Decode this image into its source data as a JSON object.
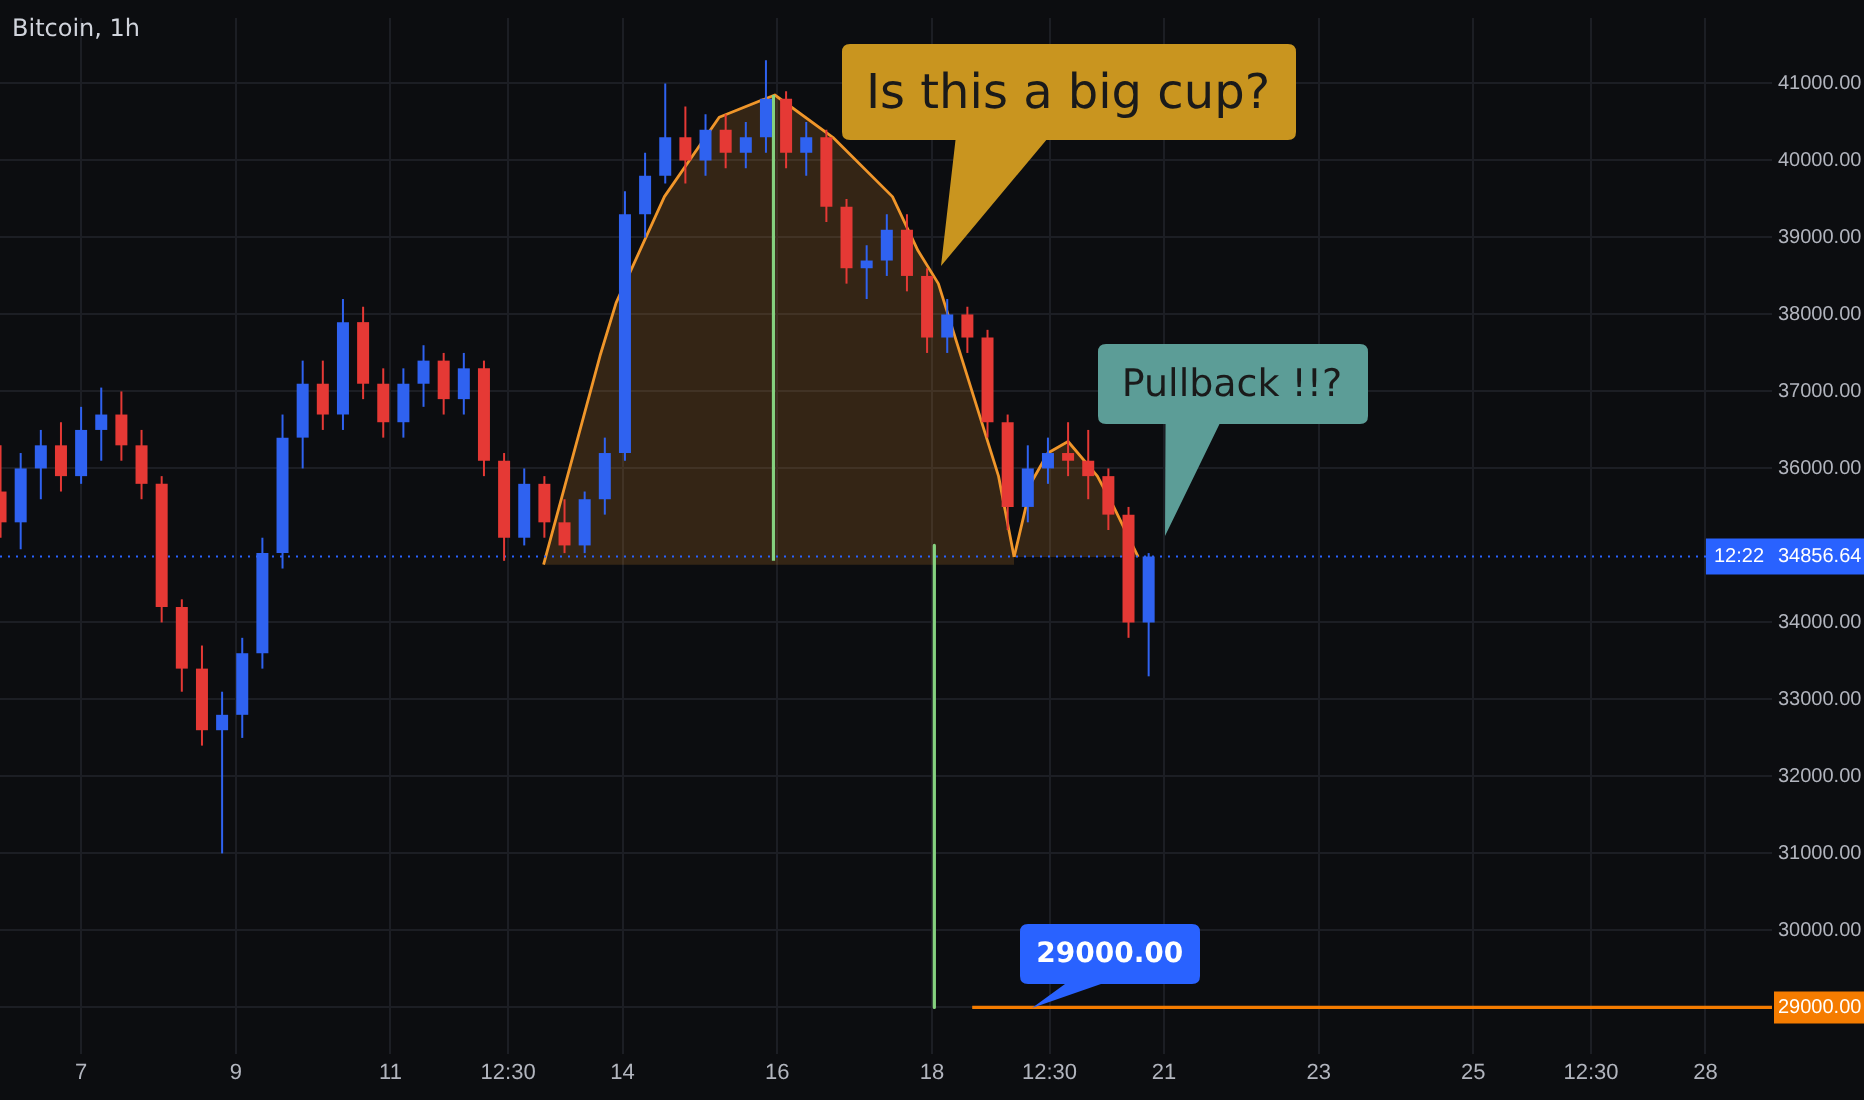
{
  "chart_data": {
    "type": "candlestick",
    "title": "Bitcoin, 1h",
    "xlim": [
      "--06-05T22:50",
      "--06-28T20:40"
    ],
    "xticks": [
      {
        "value": "--06-07T00:00",
        "label": "7"
      },
      {
        "value": "--06-09T00:00",
        "label": "9"
      },
      {
        "value": "--06-11T00:00",
        "label": "11"
      },
      {
        "value": "--06-12T12:30",
        "label": "12:30"
      },
      {
        "value": "--06-14T00:00",
        "label": "14"
      },
      {
        "value": "--06-16T00:00",
        "label": "16"
      },
      {
        "value": "--06-18T00:00",
        "label": "18"
      },
      {
        "value": "--06-19T12:30",
        "label": "12:30"
      },
      {
        "value": "--06-21T00:00",
        "label": "21"
      },
      {
        "value": "--06-23T00:00",
        "label": "23"
      },
      {
        "value": "--06-25T00:00",
        "label": "25"
      },
      {
        "value": "--06-26T12:30",
        "label": "12:30"
      },
      {
        "value": "--06-28T00:00",
        "label": "28"
      }
    ],
    "ylim": [
      28400,
      41850
    ],
    "yticks": [
      {
        "value": 29000,
        "label": "29000.00"
      },
      {
        "value": 30000,
        "label": "30000.00"
      },
      {
        "value": 31000,
        "label": "31000.00"
      },
      {
        "value": 32000,
        "label": "32000.00"
      },
      {
        "value": 33000,
        "label": "33000.00"
      },
      {
        "value": 34000,
        "label": "34000.00"
      },
      {
        "value": 36000,
        "label": "36000.00"
      },
      {
        "value": 37000,
        "label": "37000.00"
      },
      {
        "value": 38000,
        "label": "38000.00"
      },
      {
        "value": 39000,
        "label": "39000.00"
      },
      {
        "value": 40000,
        "label": "40000.00"
      },
      {
        "value": 41000,
        "label": "41000.00"
      }
    ],
    "grid": true,
    "legend": false,
    "series": [
      {
        "type": "area",
        "color": "#f0962a",
        "x": [
          "--06-12T23:30",
          "--06-13T17:00",
          "--06-13T22:00",
          "--06-14T13:00",
          "--06-15T06:00",
          "--06-15T23:15",
          "--06-16T17:15",
          "--06-17T11:45",
          "--06-17T19:40",
          "--06-18T02:00",
          "--06-18T20:40",
          "--06-19T01:30"
        ],
        "values": [
          34750,
          37460,
          38150,
          39530,
          40560,
          40850,
          40300,
          39530,
          38830,
          38400,
          35900,
          34850
        ]
      },
      {
        "type": "area",
        "color": "#f0962a",
        "x": [
          "--06-19T01:30",
          "--06-19T07:00",
          "--06-19T12:00",
          "--06-19T18:15",
          "--06-20T03:20",
          "--06-20T08:25",
          "--06-20T16:00"
        ],
        "values": [
          34850,
          35830,
          36200,
          36350,
          35900,
          35500,
          34850
        ]
      },
      {
        "type": "line",
        "color": "#85d17f",
        "x": [
          "--06-15T22:50",
          "--06-15T22:50"
        ],
        "values": [
          34800,
          40850
        ]
      },
      {
        "type": "line",
        "color": "#85d17f",
        "x": [
          "--06-18T00:45",
          "--06-18T00:45"
        ],
        "values": [
          35000,
          29000
        ]
      },
      {
        "type": "line",
        "color": "#f57c00",
        "x": [
          "--06-18T12:30",
          "--06-28T20:40"
        ],
        "values": [
          29000,
          29000
        ]
      },
      {
        "type": "candlestick",
        "x": [
          "--06-05T23:00",
          "--06-06T05:15",
          "--06-06T11:30",
          "--06-06T17:45",
          "--06-07T00:00",
          "--06-07T06:15",
          "--06-07T12:30",
          "--06-07T18:45",
          "--06-08T01:00",
          "--06-08T07:15",
          "--06-08T13:30",
          "--06-08T19:45",
          "--06-09T02:00",
          "--06-09T08:15",
          "--06-09T14:30",
          "--06-09T20:45",
          "--06-10T03:00",
          "--06-10T09:15",
          "--06-10T15:30",
          "--06-10T21:45",
          "--06-11T04:00",
          "--06-11T10:15",
          "--06-11T16:30",
          "--06-11T22:45",
          "--06-12T05:00",
          "--06-12T11:15",
          "--06-12T17:30",
          "--06-12T23:45",
          "--06-13T06:00",
          "--06-13T12:15",
          "--06-13T18:30",
          "--06-14T00:45",
          "--06-14T07:00",
          "--06-14T13:15",
          "--06-14T19:30",
          "--06-15T01:45",
          "--06-15T08:00",
          "--06-15T14:15",
          "--06-15T20:30",
          "--06-16T02:45",
          "--06-16T09:00",
          "--06-16T15:15",
          "--06-16T21:30",
          "--06-17T03:45",
          "--06-17T10:00",
          "--06-17T16:15",
          "--06-17T22:30",
          "--06-18T04:45",
          "--06-18T11:00",
          "--06-18T17:15",
          "--06-18T23:30",
          "--06-19T05:45",
          "--06-19T12:00",
          "--06-19T18:15",
          "--06-20T00:30",
          "--06-20T06:45",
          "--06-20T13:00",
          "--06-20T19:15"
        ],
        "ohlc": [
          [
            35700,
            36300,
            35100,
            35300
          ],
          [
            35300,
            36200,
            34950,
            36000
          ],
          [
            36000,
            36500,
            35600,
            36300
          ],
          [
            36300,
            36600,
            35700,
            35900
          ],
          [
            35900,
            36800,
            35800,
            36500
          ],
          [
            36500,
            37050,
            36100,
            36700
          ],
          [
            36700,
            37000,
            36100,
            36300
          ],
          [
            36300,
            36500,
            35600,
            35800
          ],
          [
            35800,
            35900,
            34000,
            34200
          ],
          [
            34200,
            34300,
            33100,
            33400
          ],
          [
            33400,
            33700,
            32400,
            32600
          ],
          [
            32600,
            33100,
            31000,
            32800
          ],
          [
            32800,
            33800,
            32500,
            33600
          ],
          [
            33600,
            35100,
            33400,
            34900
          ],
          [
            34900,
            36700,
            34700,
            36400
          ],
          [
            36400,
            37400,
            36000,
            37100
          ],
          [
            37100,
            37400,
            36500,
            36700
          ],
          [
            36700,
            38200,
            36500,
            37900
          ],
          [
            37900,
            38100,
            36900,
            37100
          ],
          [
            37100,
            37300,
            36400,
            36600
          ],
          [
            36600,
            37300,
            36400,
            37100
          ],
          [
            37100,
            37600,
            36800,
            37400
          ],
          [
            37400,
            37500,
            36700,
            36900
          ],
          [
            36900,
            37500,
            36700,
            37300
          ],
          [
            37300,
            37400,
            35900,
            36100
          ],
          [
            36100,
            36200,
            34800,
            35100
          ],
          [
            35100,
            36000,
            35000,
            35800
          ],
          [
            35800,
            35900,
            35100,
            35300
          ],
          [
            35300,
            35600,
            34900,
            35000
          ],
          [
            35000,
            35700,
            34900,
            35600
          ],
          [
            35600,
            36400,
            35400,
            36200
          ],
          [
            36200,
            39600,
            36100,
            39300
          ],
          [
            39300,
            40100,
            39000,
            39800
          ],
          [
            39800,
            41000,
            39700,
            40300
          ],
          [
            40300,
            40700,
            39700,
            40000
          ],
          [
            40000,
            40600,
            39800,
            40400
          ],
          [
            40400,
            40600,
            39900,
            40100
          ],
          [
            40100,
            40500,
            39900,
            40300
          ],
          [
            40300,
            41300,
            40100,
            40800
          ],
          [
            40800,
            40900,
            39900,
            40100
          ],
          [
            40100,
            40500,
            39800,
            40300
          ],
          [
            40300,
            40400,
            39200,
            39400
          ],
          [
            39400,
            39500,
            38400,
            38600
          ],
          [
            38600,
            38900,
            38200,
            38700
          ],
          [
            38700,
            39300,
            38500,
            39100
          ],
          [
            39100,
            39300,
            38300,
            38500
          ],
          [
            38500,
            38600,
            37500,
            37700
          ],
          [
            37700,
            38200,
            37500,
            38000
          ],
          [
            38000,
            38100,
            37500,
            37700
          ],
          [
            37700,
            37800,
            36400,
            36600
          ],
          [
            36600,
            36700,
            35200,
            35500
          ],
          [
            35500,
            36300,
            35300,
            36000
          ],
          [
            36000,
            36400,
            35800,
            36200
          ],
          [
            36200,
            36600,
            35900,
            36100
          ],
          [
            36100,
            36500,
            35600,
            35900
          ],
          [
            35900,
            36000,
            35200,
            35400
          ],
          [
            35400,
            35500,
            33800,
            34000
          ],
          [
            34000,
            34900,
            33300,
            34856.64
          ]
        ],
        "colors": [
          "#e53935",
          "#2f62f0",
          "#2f62f0",
          "#e53935",
          "#2f62f0",
          "#2f62f0",
          "#e53935",
          "#e53935",
          "#e53935",
          "#e53935",
          "#e53935",
          "#2f62f0",
          "#2f62f0",
          "#2f62f0",
          "#2f62f0",
          "#2f62f0",
          "#e53935",
          "#2f62f0",
          "#e53935",
          "#e53935",
          "#2f62f0",
          "#2f62f0",
          "#e53935",
          "#2f62f0",
          "#e53935",
          "#e53935",
          "#2f62f0",
          "#e53935",
          "#e53935",
          "#2f62f0",
          "#2f62f0",
          "#2f62f0",
          "#2f62f0",
          "#2f62f0",
          "#e53935",
          "#2f62f0",
          "#e53935",
          "#2f62f0",
          "#2f62f0",
          "#e53935",
          "#2f62f0",
          "#e53935",
          "#e53935",
          "#2f62f0",
          "#2f62f0",
          "#e53935",
          "#e53935",
          "#2f62f0",
          "#e53935",
          "#e53935",
          "#e53935",
          "#2f62f0",
          "#2f62f0",
          "#e53935",
          "#e53935",
          "#e53935",
          "#e53935",
          "#2f62f0"
        ]
      }
    ],
    "ref_lines": [
      {
        "axis": "y",
        "value": 34856.64,
        "label": "34856.64",
        "color": "#2962ff",
        "line_style": "dotted"
      }
    ],
    "annotations": [
      "Is this a big cup?",
      "Pullback !!?",
      {
        "text": "29000.00",
        "x": "--06-19T07:00",
        "y": 29000
      },
      "12:22"
    ]
  }
}
